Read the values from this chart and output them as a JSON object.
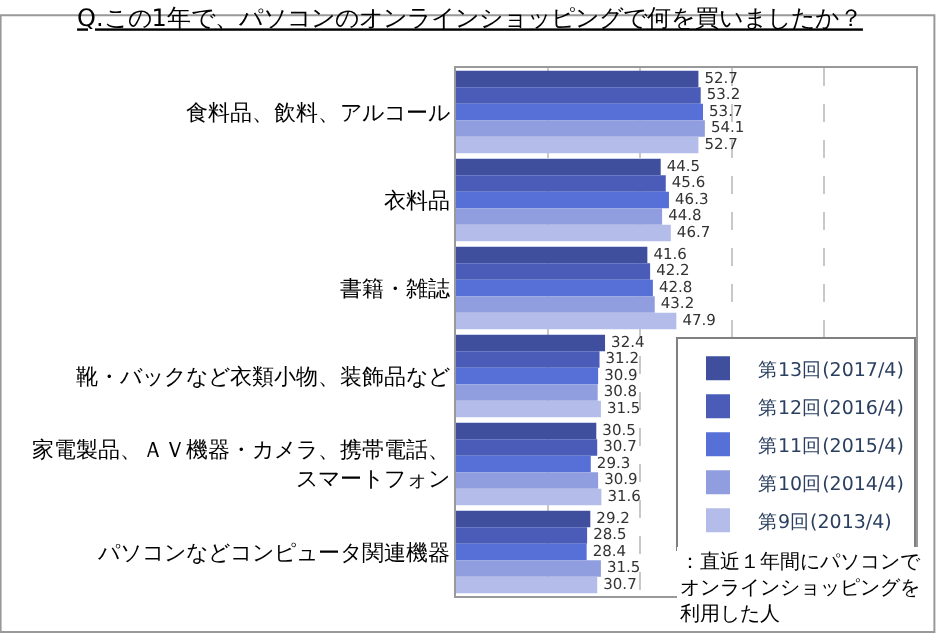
{
  "chart_data": {
    "type": "bar",
    "orientation": "horizontal",
    "title": "Q.この1年で、パソコンのオンラインショッピングで何を買いましたか？",
    "categories": [
      "食料品、飲料、アルコール",
      "衣料品",
      "書籍・雑誌",
      "靴・バックなど衣類小物、装飾品など",
      "家電製品、ＡＶ機器・カメラ、携帯電話、スマートフォン",
      "パソコンなどコンピュータ関連機器"
    ],
    "series": [
      {
        "name": "第13回(2017/4)",
        "color": "#3f4f9e",
        "values": [
          52.7,
          44.5,
          41.6,
          32.4,
          30.5,
          29.2
        ]
      },
      {
        "name": "第12回(2016/4)",
        "color": "#4a5cb8",
        "values": [
          53.2,
          45.6,
          42.2,
          31.2,
          30.7,
          28.5
        ]
      },
      {
        "name": "第11回(2015/4)",
        "color": "#5670d8",
        "values": [
          53.7,
          46.3,
          42.8,
          30.9,
          29.3,
          28.4
        ]
      },
      {
        "name": "第10回(2014/4)",
        "color": "#909ddf",
        "values": [
          54.1,
          44.8,
          43.2,
          30.8,
          30.9,
          31.5
        ]
      },
      {
        "name": "第9回(2013/4)",
        "color": "#b4bcea",
        "values": [
          52.7,
          46.7,
          47.9,
          31.5,
          31.6,
          30.7
        ]
      }
    ],
    "xlim": [
      0,
      100
    ],
    "xticks": [
      {
        "value": 20,
        "label": null
      },
      {
        "value": 40,
        "label": null
      },
      {
        "value": 60,
        "label": null
      },
      {
        "value": 80,
        "label": null
      }
    ],
    "tick_labels": "y",
    "grid": "x",
    "data_labels": true,
    "legend": "right",
    "annotations": [
      "：直近１年間にパソコンでオンラインショッピングを利用した人"
    ]
  }
}
